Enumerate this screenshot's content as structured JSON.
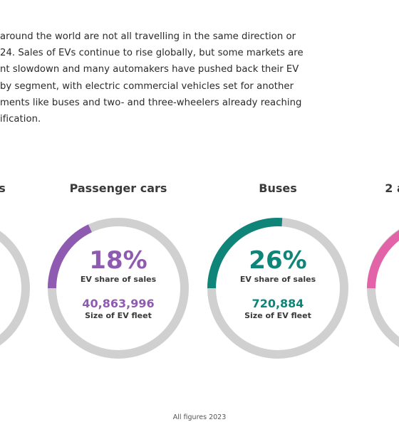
{
  "intro": {
    "lines": [
      "around the world are not all travelling in the same direction or",
      "24. Sales of EVs continue to rise globally, but some markets are",
      "nt slowdown and many automakers have pushed back their EV",
      "by segment, with electric commercial vehicles set for another",
      "ments like buses and two- and three-wheelers already reaching",
      "ification."
    ]
  },
  "segments": [
    {
      "title": "s",
      "color": "#cccccc",
      "share_percent": null
    },
    {
      "title": "Passenger cars",
      "color": "#8e5bb0",
      "share_percent": 18,
      "share_text": "18%",
      "share_label": "EV share of sales",
      "fleet_value": "40,863,996",
      "fleet_label": "Size of EV fleet"
    },
    {
      "title": "Buses",
      "color": "#0f857a",
      "share_percent": 26,
      "share_text": "26%",
      "share_label": "EV share of sales",
      "fleet_value": "720,884",
      "fleet_label": "Size of EV fleet"
    },
    {
      "title": "2 a",
      "color": "#e263a8",
      "share_percent": null
    }
  ],
  "footer": {
    "text": "All figures 2023"
  }
}
